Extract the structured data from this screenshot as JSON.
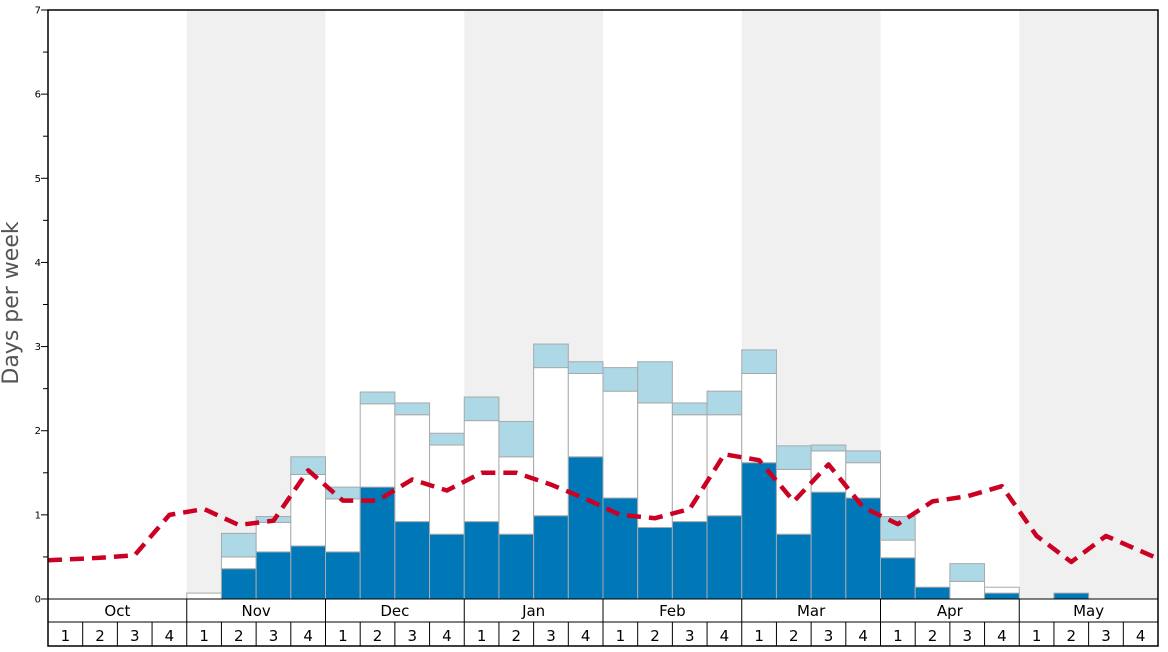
{
  "chart_data": {
    "type": "bar",
    "ylabel": "Days per week",
    "ylim": [
      0,
      7
    ],
    "y_ticks": [
      0,
      1,
      2,
      3,
      4,
      5,
      6,
      7
    ],
    "months": [
      "Oct",
      "Nov",
      "Dec",
      "Jan",
      "Feb",
      "Mar",
      "Apr",
      "May"
    ],
    "week_labels": [
      "1",
      "2",
      "3",
      "4"
    ],
    "shaded_months": [
      "Nov",
      "Jan",
      "Mar",
      "May"
    ],
    "categories": [
      "Oct 1",
      "Oct 2",
      "Oct 3",
      "Oct 4",
      "Nov 1",
      "Nov 2",
      "Nov 3",
      "Nov 4",
      "Dec 1",
      "Dec 2",
      "Dec 3",
      "Dec 4",
      "Jan 1",
      "Jan 2",
      "Jan 3",
      "Jan 4",
      "Feb 1",
      "Feb 2",
      "Feb 3",
      "Feb 4",
      "Mar 1",
      "Mar 2",
      "Mar 3",
      "Mar 4",
      "Apr 1",
      "Apr 2",
      "Apr 3",
      "Apr 4",
      "May 1",
      "May 2",
      "May 3",
      "May 4"
    ],
    "series": [
      {
        "key": "dark",
        "color": "#0077b6",
        "values": [
          0,
          0,
          0,
          0,
          0,
          0.36,
          0.56,
          0.63,
          0.56,
          1.33,
          0.92,
          0.77,
          0.92,
          0.77,
          0.99,
          1.69,
          1.2,
          0.85,
          0.92,
          0.99,
          1.62,
          0.77,
          1.27,
          1.2,
          0.49,
          0.14,
          0,
          0.07,
          0,
          0.07,
          0,
          0
        ]
      },
      {
        "key": "white",
        "color": "#ffffff",
        "values": [
          0,
          0,
          0,
          0,
          0.07,
          0.14,
          0.35,
          0.85,
          0.63,
          0.99,
          1.27,
          1.06,
          1.2,
          0.92,
          1.76,
          0.99,
          1.27,
          1.48,
          1.27,
          1.2,
          1.06,
          0.77,
          0.49,
          0.42,
          0.21,
          0,
          0.21,
          0.07,
          0,
          0,
          0,
          0
        ]
      },
      {
        "key": "light",
        "color": "#add8e6",
        "values": [
          0,
          0,
          0,
          0,
          0,
          0.28,
          0.07,
          0.21,
          0.14,
          0.14,
          0.14,
          0.14,
          0.28,
          0.42,
          0.28,
          0.14,
          0.28,
          0.49,
          0.14,
          0.28,
          0.28,
          0.28,
          0.07,
          0.14,
          0.28,
          0,
          0.21,
          0,
          0,
          0,
          0,
          0
        ]
      },
      {
        "key": "average",
        "type": "line",
        "color": "#cc0022",
        "dashed": true,
        "values": [
          0.46,
          0.49,
          0.52,
          1.0,
          1.07,
          0.88,
          0.93,
          1.53,
          1.17,
          1.17,
          1.42,
          1.29,
          1.5,
          1.5,
          1.36,
          1.19,
          1.0,
          0.96,
          1.07,
          1.72,
          1.65,
          1.16,
          1.6,
          1.09,
          0.89,
          1.16,
          1.22,
          1.34,
          0.75,
          0.44,
          0.75,
          0.48
        ]
      }
    ],
    "grid": false,
    "legend": "none"
  }
}
